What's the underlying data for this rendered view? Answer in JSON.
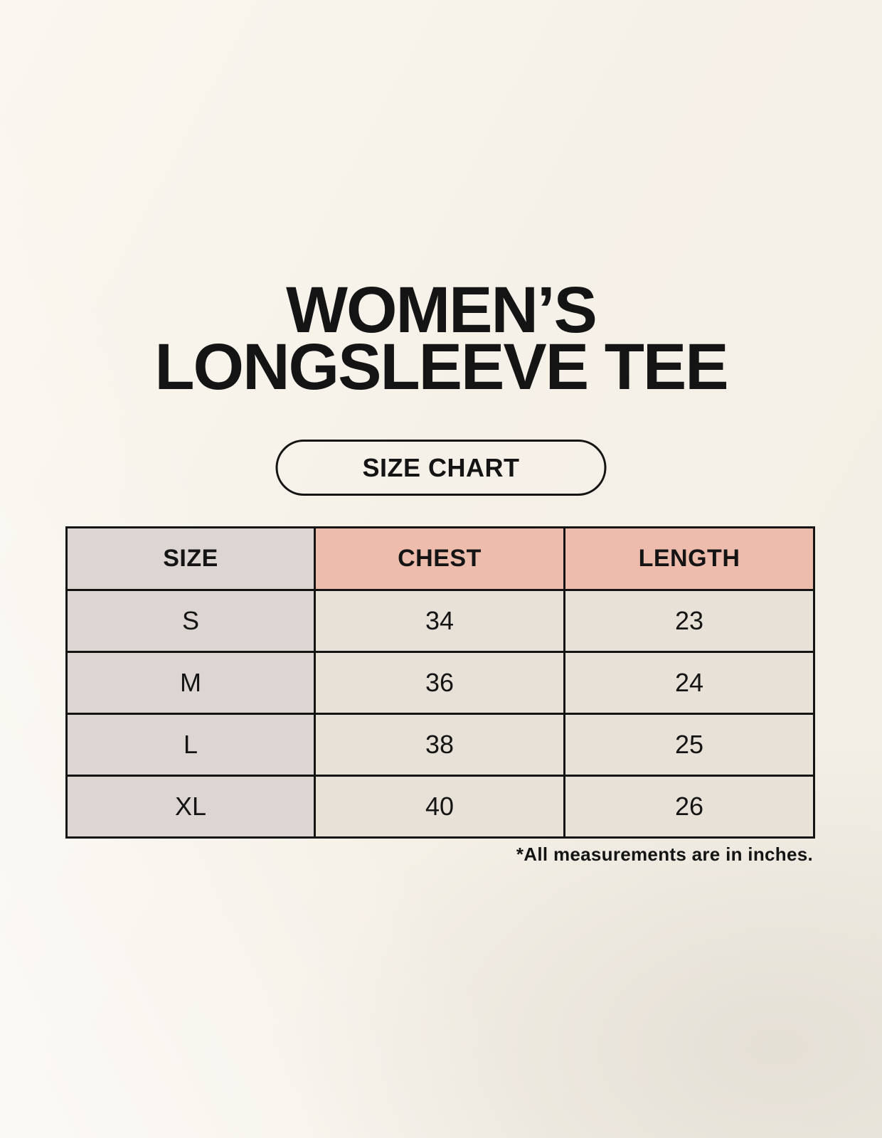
{
  "page": {
    "title_line1": "WOMEN’S",
    "title_line2": "LONGSLEEVE TEE",
    "button_label": "SIZE CHART",
    "footnote": "*All measurements are in inches."
  },
  "table": {
    "columns": [
      "SIZE",
      "CHEST",
      "LENGTH"
    ],
    "rows": [
      {
        "size": "S",
        "chest": "34",
        "length": "23"
      },
      {
        "size": "M",
        "chest": "36",
        "length": "24"
      },
      {
        "size": "L",
        "chest": "38",
        "length": "25"
      },
      {
        "size": "XL",
        "chest": "40",
        "length": "26"
      }
    ]
  },
  "colors": {
    "background": "#f6f1e8",
    "header_pink": "#eebcac",
    "column_taupe": "#dcd5d1",
    "cell_cream": "#e8e1d7",
    "border": "#141414",
    "text": "#141414"
  }
}
